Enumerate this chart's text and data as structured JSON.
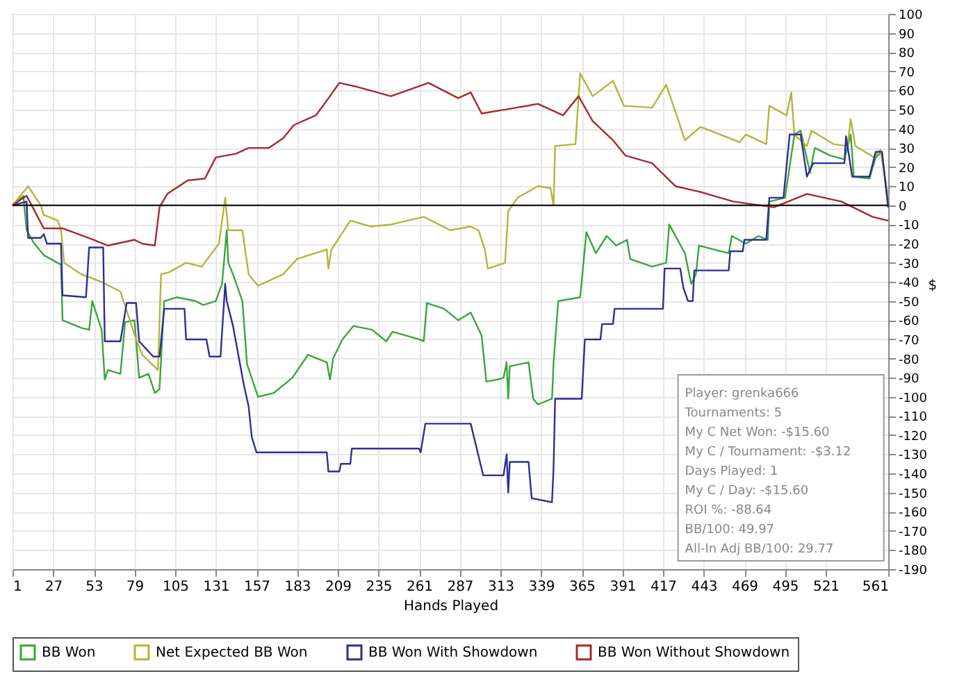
{
  "chart_data": {
    "type": "line",
    "xlabel": "Hands Played",
    "ylabel": "$",
    "xlim": [
      1,
      561
    ],
    "xticks": [
      1,
      27,
      53,
      79,
      105,
      131,
      157,
      183,
      209,
      235,
      261,
      287,
      313,
      339,
      365,
      391,
      417,
      443,
      469,
      495,
      521,
      561
    ],
    "ylim": [
      -190,
      100
    ],
    "yticks": [
      -190,
      -180,
      -170,
      -160,
      -150,
      -140,
      -130,
      -120,
      -110,
      -100,
      -90,
      -80,
      -70,
      -60,
      -50,
      -40,
      -30,
      -20,
      -10,
      0,
      10,
      20,
      30,
      40,
      50,
      60,
      70,
      80,
      90,
      100
    ],
    "grid": true,
    "legend": "bottom",
    "marker": "none",
    "line_style": "solid",
    "ref_lines": [
      {
        "axis": "y",
        "value": 0,
        "color": "#000000"
      }
    ],
    "annotations": [
      "Player: grenka666",
      "Tournaments: 5",
      "My C Net Won: -$15.60",
      "My C / Tournament: -$3.12",
      "Days Played: 1",
      "My C / Day: -$15.60",
      "ROI %: -88.64",
      "BB/100: 49.97",
      "All-In Adj BB/100: 29.77"
    ],
    "series": [
      {
        "name": "BB Won",
        "color": "#3ca53c",
        "x": [
          1,
          8,
          10,
          15,
          21,
          32,
          33,
          45,
          50,
          52,
          58,
          60,
          62,
          70,
          73,
          79,
          82,
          88,
          92,
          95,
          98,
          106,
          118,
          123,
          131,
          135,
          138,
          139,
          142,
          148,
          151,
          158,
          168,
          180,
          190,
          202,
          204,
          206,
          212,
          219,
          231,
          240,
          244,
          261,
          264,
          266,
          277,
          286,
          294,
          301,
          304,
          311,
          315,
          317,
          318,
          319,
          331,
          334,
          337,
          346,
          347,
          350,
          364,
          368,
          374,
          381,
          387,
          394,
          396,
          410,
          419,
          421,
          431,
          435,
          438,
          440,
          459,
          461,
          470,
          478,
          484,
          485,
          495,
          501,
          505,
          508,
          511,
          514,
          524,
          533,
          537,
          539,
          549,
          553,
          557,
          561
        ],
        "values": [
          0,
          5,
          -13,
          -20,
          -26,
          -31,
          -60,
          -64,
          -65,
          -50,
          -65,
          -91,
          -86,
          -88,
          -61,
          -60,
          -90,
          -88,
          -98,
          -96,
          -50,
          -48,
          -50,
          -52,
          -50,
          -41,
          -13,
          -30,
          -36,
          -50,
          -83,
          -100,
          -98,
          -90,
          -78,
          -82,
          -91,
          -80,
          -70,
          -63,
          -65,
          -71,
          -66,
          -70,
          -71,
          -51,
          -54,
          -60,
          -56,
          -68,
          -92,
          -91,
          -90,
          -82,
          -101,
          -84,
          -82,
          -101,
          -104,
          -101,
          -82,
          -50,
          -48,
          -14,
          -25,
          -16,
          -21,
          -18,
          -28,
          -32,
          -30,
          -10,
          -25,
          -41,
          -36,
          -21,
          -25,
          -16,
          -20,
          -16,
          -18,
          2,
          4,
          37,
          39,
          28,
          17,
          30,
          26,
          24,
          37,
          15,
          14,
          25,
          28,
          -1
        ]
      },
      {
        "name": "Net Expected BB Won",
        "color": "#b4b43c",
        "x": [
          1,
          11,
          19,
          21,
          30,
          32,
          34,
          45,
          58,
          70,
          80,
          84,
          94,
          96,
          101,
          112,
          122,
          133,
          137,
          139,
          148,
          152,
          158,
          174,
          183,
          202,
          203,
          205,
          217,
          230,
          243,
          264,
          281,
          294,
          299,
          303,
          305,
          316,
          318,
          324,
          337,
          345,
          347,
          348,
          361,
          364,
          372,
          385,
          392,
          410,
          419,
          427,
          431,
          441,
          466,
          470,
          483,
          485,
          496,
          499,
          501,
          509,
          512,
          526,
          535,
          537,
          540,
          552,
          556,
          561
        ],
        "values": [
          0,
          10,
          0,
          -5,
          -8,
          -13,
          -30,
          -36,
          -40,
          -45,
          -70,
          -78,
          -86,
          -36,
          -35,
          -30,
          -32,
          -20,
          4,
          -13,
          -13,
          -36,
          -42,
          -36,
          -28,
          -23,
          -33,
          -23,
          -8,
          -11,
          -10,
          -6,
          -13,
          -11,
          -13,
          -23,
          -33,
          -30,
          -3,
          4,
          10,
          9,
          0,
          31,
          32,
          69,
          57,
          65,
          52,
          51,
          63,
          44,
          34,
          41,
          33,
          37,
          32,
          52,
          47,
          59,
          37,
          31,
          39,
          32,
          31,
          45,
          31,
          25,
          29,
          4
        ]
      },
      {
        "name": "BB Won With Showdown",
        "color": "#2e2e96",
        "x": [
          1,
          10,
          11,
          19,
          21,
          23,
          32,
          33,
          48,
          50,
          59,
          60,
          70,
          74,
          80,
          82,
          91,
          95,
          98,
          111,
          112,
          125,
          127,
          134,
          137,
          138,
          142,
          149,
          152,
          154,
          157,
          202,
          203,
          210,
          211,
          217,
          218,
          261,
          262,
          265,
          294,
          302,
          315,
          317,
          318,
          319,
          331,
          333,
          346,
          347,
          348,
          365,
          367,
          377,
          378,
          385,
          386,
          417,
          418,
          428,
          430,
          433,
          436,
          437,
          459,
          460,
          468,
          469,
          483,
          485,
          494,
          498,
          505,
          509,
          513,
          533,
          534,
          538,
          549,
          553,
          557,
          561
        ],
        "values": [
          0,
          2,
          -17,
          -17,
          -15,
          -20,
          -20,
          -47,
          -48,
          -22,
          -22,
          -71,
          -71,
          -51,
          -51,
          -71,
          -79,
          -79,
          -54,
          -54,
          -70,
          -70,
          -79,
          -79,
          -41,
          -50,
          -63,
          -94,
          -105,
          -121,
          -129,
          -129,
          -139,
          -139,
          -135,
          -135,
          -127,
          -127,
          -129,
          -114,
          -114,
          -141,
          -141,
          -130,
          -150,
          -134,
          -134,
          -153,
          -155,
          -137,
          -101,
          -101,
          -70,
          -70,
          -62,
          -62,
          -54,
          -54,
          -33,
          -33,
          -43,
          -50,
          -50,
          -34,
          -34,
          -24,
          -24,
          -18,
          -18,
          4,
          4,
          37,
          37,
          15,
          22,
          22,
          36,
          15,
          15,
          28,
          28,
          -1
        ]
      },
      {
        "name": "BB Won Without Showdown",
        "color": "#a52a2a",
        "x": [
          1,
          10,
          21,
          33,
          53,
          62,
          79,
          84,
          92,
          95,
          100,
          113,
          124,
          131,
          144,
          152,
          165,
          174,
          181,
          195,
          204,
          210,
          221,
          243,
          267,
          286,
          294,
          301,
          316,
          337,
          353,
          363,
          372,
          385,
          393,
          410,
          425,
          441,
          462,
          488,
          509,
          531,
          551,
          561
        ],
        "values": [
          0,
          5,
          -12,
          -12,
          -18,
          -21,
          -18,
          -20,
          -21,
          -1,
          6,
          13,
          14,
          25,
          27,
          30,
          30,
          35,
          42,
          47,
          57,
          64,
          62,
          57,
          64,
          56,
          59,
          48,
          50,
          53,
          47,
          57,
          44,
          34,
          26,
          22,
          10,
          7,
          2,
          -1,
          6,
          2,
          -6,
          -8
        ]
      }
    ]
  }
}
